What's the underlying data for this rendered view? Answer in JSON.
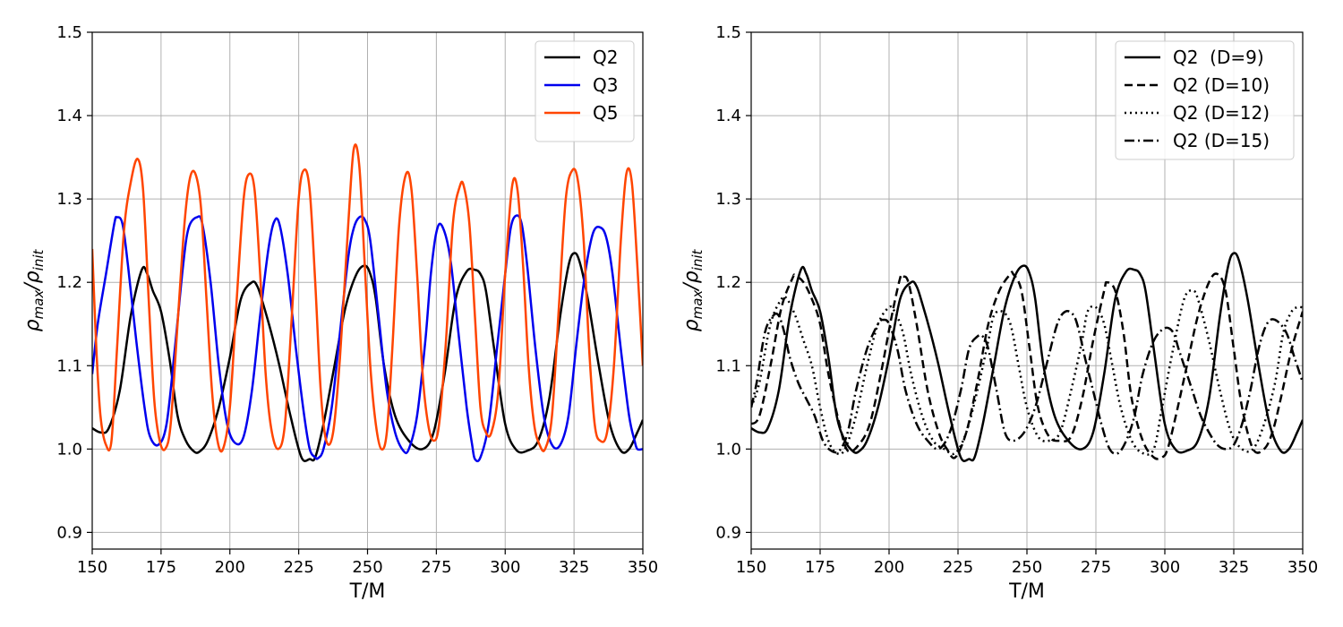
{
  "chart_data": [
    {
      "type": "line",
      "xlabel": "T/M",
      "ylabel": "ρmax/ρinit",
      "ylabel_main": "ρ",
      "ylabel_sub1": "max",
      "ylabel_sep": "/ρ",
      "ylabel_sub2": "init",
      "xlim": [
        150,
        350
      ],
      "ylim": [
        0.88,
        1.5
      ],
      "xticks": [
        150,
        175,
        200,
        225,
        250,
        275,
        300,
        325,
        350
      ],
      "yticks": [
        0.9,
        1.0,
        1.1,
        1.2,
        1.3,
        1.4,
        1.5
      ],
      "grid": true,
      "legend_position": "top-right",
      "series": [
        {
          "name": "Q2",
          "color": "#000000",
          "style": "solid",
          "x": [
            150,
            153,
            156,
            160,
            164,
            168,
            170,
            172,
            175,
            178,
            181,
            184,
            187,
            189,
            192,
            196,
            200,
            204,
            208,
            210,
            212,
            215,
            218,
            222,
            226,
            229,
            231,
            234,
            238,
            242,
            246,
            249,
            251,
            253,
            256,
            260,
            265,
            270,
            274,
            278,
            282,
            286,
            289,
            291,
            293,
            296,
            300,
            304,
            308,
            312,
            316,
            320,
            323,
            325,
            327,
            330,
            334,
            338,
            342,
            345,
            348,
            350
          ],
          "y": [
            1.025,
            1.02,
            1.025,
            1.07,
            1.16,
            1.215,
            1.21,
            1.19,
            1.165,
            1.11,
            1.04,
            1.01,
            0.997,
            0.997,
            1.01,
            1.05,
            1.11,
            1.18,
            1.2,
            1.195,
            1.175,
            1.14,
            1.1,
            1.04,
            0.99,
            0.988,
            0.99,
            1.03,
            1.1,
            1.17,
            1.21,
            1.22,
            1.21,
            1.18,
            1.1,
            1.04,
            1.01,
            1.0,
            1.02,
            1.09,
            1.18,
            1.213,
            1.215,
            1.21,
            1.19,
            1.12,
            1.03,
            0.999,
            0.998,
            1.01,
            1.06,
            1.16,
            1.22,
            1.235,
            1.225,
            1.18,
            1.1,
            1.03,
            0.998,
            1.0,
            1.02,
            1.035
          ]
        },
        {
          "name": "Q3",
          "color": "#0000ee",
          "style": "solid",
          "x": [
            150,
            152,
            155,
            158,
            159,
            161,
            163,
            166,
            169,
            171,
            174,
            177,
            180,
            183,
            185,
            188,
            190,
            193,
            196,
            199,
            202,
            205,
            208,
            211,
            214,
            216,
            218,
            221,
            224,
            227,
            229,
            231,
            232,
            234,
            237,
            240,
            243,
            245,
            247,
            249,
            251,
            254,
            257,
            260,
            263,
            265,
            268,
            271,
            273,
            275,
            277,
            280,
            283,
            286,
            288,
            289,
            291,
            294,
            297,
            300,
            302,
            304,
            306,
            308,
            311,
            314,
            317,
            320,
            323,
            326,
            329,
            332,
            335,
            337,
            339,
            342,
            345,
            347,
            348,
            350
          ],
          "y": [
            1.09,
            1.15,
            1.21,
            1.27,
            1.278,
            1.27,
            1.22,
            1.13,
            1.05,
            1.015,
            1.005,
            1.03,
            1.12,
            1.22,
            1.265,
            1.278,
            1.27,
            1.2,
            1.1,
            1.03,
            1.007,
            1.015,
            1.07,
            1.16,
            1.24,
            1.272,
            1.27,
            1.21,
            1.12,
            1.04,
            1.0,
            0.99,
            0.989,
            1.0,
            1.05,
            1.14,
            1.23,
            1.265,
            1.278,
            1.275,
            1.25,
            1.16,
            1.07,
            1.02,
            0.998,
            1.0,
            1.04,
            1.13,
            1.21,
            1.26,
            1.268,
            1.23,
            1.14,
            1.05,
            1.005,
            0.988,
            0.99,
            1.03,
            1.12,
            1.21,
            1.265,
            1.28,
            1.27,
            1.22,
            1.12,
            1.04,
            1.005,
            1.005,
            1.04,
            1.13,
            1.21,
            1.26,
            1.265,
            1.25,
            1.21,
            1.12,
            1.04,
            1.01,
            1.0,
            1.0
          ]
        },
        {
          "name": "Q5",
          "color": "#ff4500",
          "style": "solid",
          "x": [
            150,
            151.5,
            153,
            155,
            157,
            159,
            161.5,
            164,
            166.5,
            168.5,
            170.5,
            172.5,
            174.5,
            176.5,
            178.5,
            181,
            183.5,
            185.5,
            187.5,
            189.5,
            191.5,
            193.5,
            195.5,
            197.5,
            200,
            202.5,
            205,
            207,
            209,
            211,
            213,
            215,
            217.5,
            220,
            222.5,
            225,
            227,
            229,
            231,
            233,
            235,
            237.5,
            240,
            243,
            245,
            247,
            249,
            251,
            253,
            255,
            257,
            259,
            261.5,
            264,
            266,
            268,
            270,
            272,
            274,
            276,
            278.5,
            281,
            283.5,
            285,
            287,
            289,
            291,
            293,
            295,
            297.5,
            300,
            302.5,
            304.5,
            306.5,
            308.5,
            310.5,
            312.5,
            314.5,
            317,
            319.5,
            322,
            324.5,
            326.5,
            328.5,
            330.5,
            332.5,
            334.5,
            337,
            339.5,
            342,
            344,
            346,
            348,
            350
          ],
          "y": [
            1.24,
            1.12,
            1.04,
            1.005,
            1.01,
            1.12,
            1.26,
            1.32,
            1.348,
            1.31,
            1.18,
            1.06,
            1.01,
            1.0,
            1.03,
            1.15,
            1.27,
            1.325,
            1.33,
            1.29,
            1.18,
            1.07,
            1.01,
            1.0,
            1.05,
            1.18,
            1.3,
            1.33,
            1.31,
            1.21,
            1.09,
            1.025,
            1.0,
            1.03,
            1.16,
            1.3,
            1.335,
            1.31,
            1.2,
            1.07,
            1.01,
            1.02,
            1.11,
            1.27,
            1.36,
            1.34,
            1.22,
            1.1,
            1.03,
            1.0,
            1.02,
            1.12,
            1.27,
            1.33,
            1.31,
            1.21,
            1.09,
            1.03,
            1.01,
            1.03,
            1.13,
            1.27,
            1.315,
            1.315,
            1.27,
            1.16,
            1.05,
            1.02,
            1.02,
            1.07,
            1.21,
            1.315,
            1.31,
            1.22,
            1.1,
            1.03,
            1.005,
            1.0,
            1.04,
            1.17,
            1.3,
            1.335,
            1.32,
            1.25,
            1.12,
            1.03,
            1.01,
            1.02,
            1.1,
            1.25,
            1.33,
            1.32,
            1.22,
            1.1
          ]
        }
      ]
    },
    {
      "type": "line",
      "xlabel": "T/M",
      "ylabel": "ρmax/ρinit",
      "ylabel_main": "ρ",
      "ylabel_sub1": "max",
      "ylabel_sep": "/ρ",
      "ylabel_sub2": "init",
      "xlim": [
        150,
        350
      ],
      "ylim": [
        0.88,
        1.5
      ],
      "xticks": [
        150,
        175,
        200,
        225,
        250,
        275,
        300,
        325,
        350
      ],
      "yticks": [
        0.9,
        1.0,
        1.1,
        1.2,
        1.3,
        1.4,
        1.5
      ],
      "grid": true,
      "legend_position": "top-right",
      "series": [
        {
          "name": "Q2  (D=9)",
          "color": "#000000",
          "style": "solid",
          "x": [
            150,
            153,
            156,
            160,
            164,
            168,
            170,
            172,
            175,
            178,
            181,
            184,
            187,
            189,
            192,
            196,
            200,
            204,
            208,
            210,
            212,
            215,
            218,
            222,
            226,
            229,
            231,
            234,
            238,
            242,
            246,
            249,
            251,
            253,
            256,
            260,
            265,
            270,
            274,
            278,
            282,
            286,
            289,
            291,
            293,
            296,
            300,
            304,
            308,
            312,
            316,
            320,
            323,
            325,
            327,
            330,
            334,
            338,
            342,
            345,
            348,
            350
          ],
          "y": [
            1.025,
            1.02,
            1.025,
            1.07,
            1.16,
            1.215,
            1.21,
            1.19,
            1.165,
            1.11,
            1.04,
            1.01,
            0.997,
            0.997,
            1.01,
            1.05,
            1.11,
            1.18,
            1.2,
            1.195,
            1.175,
            1.14,
            1.1,
            1.04,
            0.99,
            0.988,
            0.99,
            1.03,
            1.1,
            1.17,
            1.21,
            1.22,
            1.21,
            1.18,
            1.1,
            1.04,
            1.01,
            1.0,
            1.02,
            1.09,
            1.18,
            1.213,
            1.215,
            1.21,
            1.19,
            1.12,
            1.03,
            0.999,
            0.998,
            1.01,
            1.06,
            1.16,
            1.22,
            1.235,
            1.225,
            1.18,
            1.1,
            1.03,
            0.998,
            1.0,
            1.02,
            1.035
          ]
        },
        {
          "name": "Q2 (D=10)",
          "color": "#000000",
          "style": "dashed",
          "x": [
            150,
            153,
            157,
            161,
            165,
            166,
            169,
            172,
            175,
            178,
            182,
            185,
            189,
            193,
            197,
            201,
            204,
            205,
            207,
            210,
            214,
            218,
            221,
            224,
            228,
            232,
            236,
            240,
            244,
            245,
            248,
            251,
            254,
            258,
            262,
            266,
            270,
            274,
            278,
            279,
            282,
            285,
            288,
            292,
            296,
            299,
            301,
            304,
            308,
            312,
            316,
            319,
            322,
            325,
            328,
            332,
            336,
            339,
            342,
            346,
            350
          ],
          "y": [
            1.03,
            1.04,
            1.1,
            1.17,
            1.205,
            1.208,
            1.2,
            1.18,
            1.15,
            1.09,
            1.03,
            0.998,
            1.005,
            1.03,
            1.09,
            1.16,
            1.205,
            1.207,
            1.2,
            1.15,
            1.07,
            1.02,
            1.0,
            0.99,
            1.02,
            1.08,
            1.15,
            1.19,
            1.21,
            1.21,
            1.19,
            1.12,
            1.05,
            1.015,
            1.01,
            1.015,
            1.06,
            1.13,
            1.19,
            1.2,
            1.19,
            1.14,
            1.06,
            1.01,
            0.99,
            0.99,
            1.0,
            1.04,
            1.1,
            1.16,
            1.2,
            1.21,
            1.19,
            1.12,
            1.05,
            1.0,
            1.0,
            1.02,
            1.06,
            1.12,
            1.165
          ]
        },
        {
          "name": "Q2 (D=12)",
          "color": "#000000",
          "style": "dotted",
          "x": [
            150,
            153,
            157,
            161,
            163,
            166,
            169,
            172,
            175,
            178,
            181,
            184,
            188,
            192,
            196,
            200,
            202,
            205,
            208,
            212,
            216,
            220,
            224,
            228,
            232,
            236,
            238,
            241,
            244,
            247,
            250,
            254,
            258,
            262,
            266,
            270,
            272,
            275,
            278,
            281,
            284,
            288,
            292,
            296,
            299,
            303,
            307,
            310,
            312,
            316,
            320,
            324,
            328,
            332,
            336,
            340,
            343,
            346,
            348,
            350
          ],
          "y": [
            1.05,
            1.08,
            1.15,
            1.18,
            1.18,
            1.16,
            1.13,
            1.1,
            1.05,
            1.01,
            0.995,
            1.0,
            1.04,
            1.1,
            1.15,
            1.17,
            1.165,
            1.14,
            1.09,
            1.04,
            1.01,
            1.0,
            0.995,
            1.02,
            1.07,
            1.13,
            1.16,
            1.165,
            1.15,
            1.1,
            1.05,
            1.015,
            1.01,
            1.02,
            1.07,
            1.13,
            1.165,
            1.17,
            1.15,
            1.1,
            1.05,
            1.01,
            0.995,
            1.0,
            1.05,
            1.12,
            1.18,
            1.19,
            1.18,
            1.13,
            1.07,
            1.02,
            1.0,
            1.0,
            1.03,
            1.08,
            1.14,
            1.165,
            1.17,
            1.17
          ]
        },
        {
          "name": "Q2 (D=15)",
          "color": "#000000",
          "style": "dashdot",
          "x": [
            150,
            152,
            155,
            158,
            160,
            162,
            164,
            167,
            170,
            173,
            176,
            179,
            182,
            185,
            188,
            192,
            196,
            198,
            200,
            203,
            206,
            210,
            214,
            218,
            222,
            226,
            229,
            232,
            234,
            236,
            239,
            242,
            245,
            249,
            253,
            257,
            261,
            264,
            267,
            269,
            271,
            274,
            277,
            280,
            283,
            286,
            289,
            292,
            296,
            300,
            303,
            305,
            307,
            310,
            313,
            316,
            319,
            322,
            325,
            328,
            331,
            334,
            337,
            340,
            344,
            347,
            350
          ],
          "y": [
            1.05,
            1.08,
            1.14,
            1.16,
            1.16,
            1.14,
            1.11,
            1.08,
            1.06,
            1.04,
            1.01,
            0.998,
            0.998,
            1.02,
            1.07,
            1.12,
            1.15,
            1.155,
            1.15,
            1.12,
            1.07,
            1.03,
            1.01,
            1.0,
            1.02,
            1.07,
            1.12,
            1.135,
            1.135,
            1.12,
            1.07,
            1.02,
            1.01,
            1.02,
            1.05,
            1.1,
            1.15,
            1.165,
            1.16,
            1.14,
            1.11,
            1.07,
            1.03,
            1.0,
            0.995,
            1.01,
            1.04,
            1.09,
            1.13,
            1.145,
            1.14,
            1.12,
            1.1,
            1.07,
            1.04,
            1.02,
            1.005,
            1.0,
            1.005,
            1.03,
            1.07,
            1.12,
            1.15,
            1.155,
            1.14,
            1.11,
            1.08
          ]
        }
      ]
    }
  ]
}
